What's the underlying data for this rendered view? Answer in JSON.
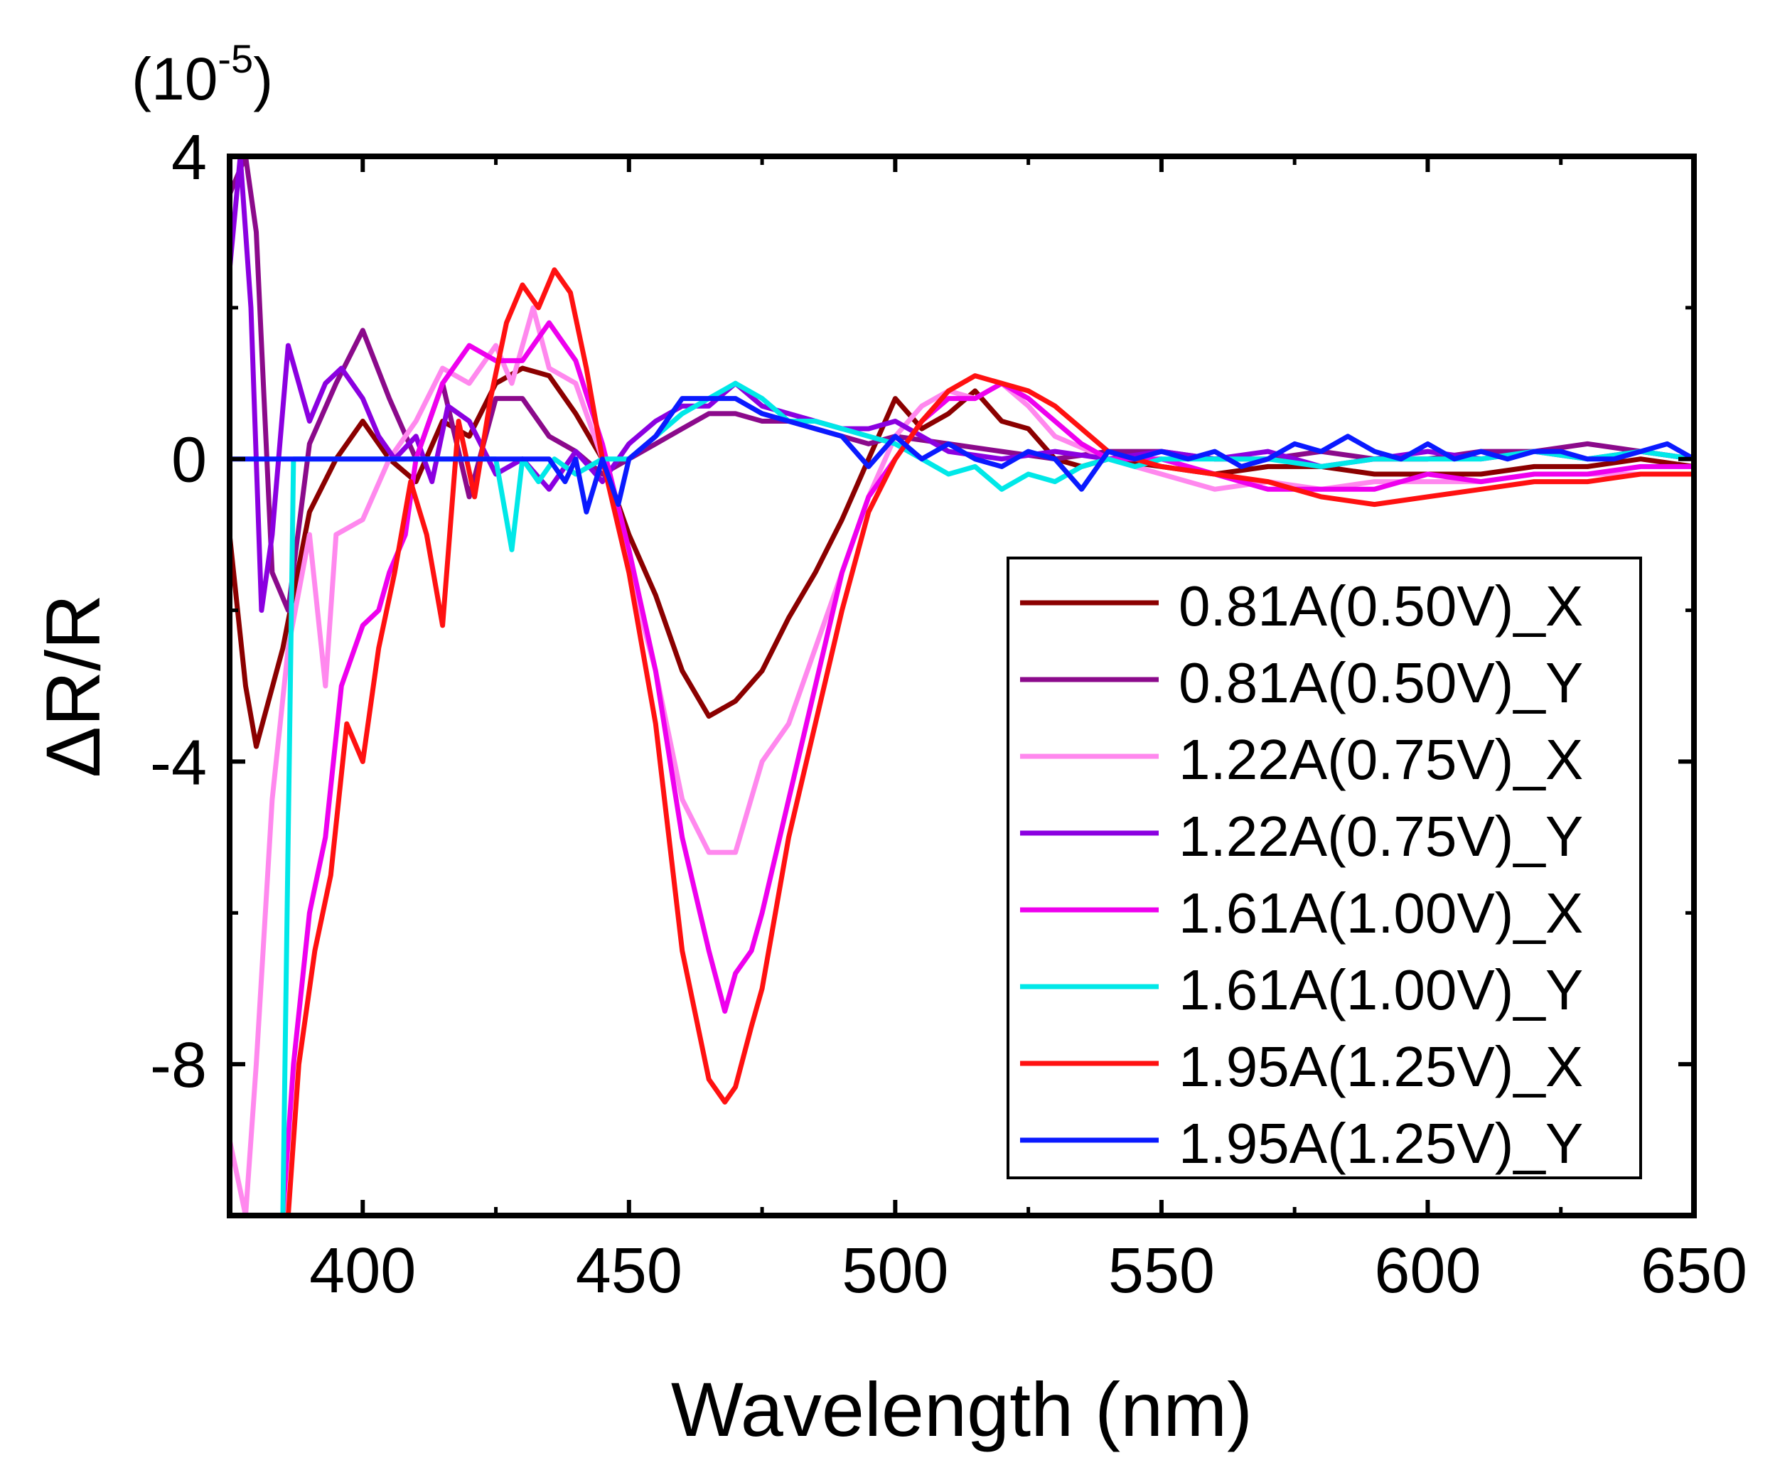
{
  "chart_data": {
    "type": "line",
    "title": "",
    "xlabel": "Wavelength (nm)",
    "ylabel": "ΔR/R",
    "y_multiplier": "(10",
    "y_multiplier_exp": "-5",
    "y_multiplier_close": ")",
    "xlim": [
      375,
      650
    ],
    "ylim": [
      -10,
      4
    ],
    "xticks": [
      400,
      450,
      500,
      550,
      600,
      650
    ],
    "yticks": [
      -8,
      -4,
      0,
      4
    ],
    "xtick_labels": [
      "400",
      "450",
      "500",
      "550",
      "600",
      "650"
    ],
    "ytick_labels": [
      "-8",
      "-4",
      "0",
      "4"
    ],
    "legend_position": "lower-right",
    "series": [
      {
        "name": "0.81A(0.50V)_X",
        "color": "#8b0000",
        "x": [
          375,
          378,
          380,
          385,
          390,
          395,
          400,
          405,
          410,
          415,
          420,
          425,
          430,
          435,
          440,
          445,
          450,
          455,
          460,
          465,
          470,
          475,
          480,
          485,
          490,
          495,
          500,
          505,
          510,
          515,
          520,
          525,
          530,
          535,
          540,
          550,
          560,
          570,
          580,
          590,
          600,
          610,
          620,
          630,
          640,
          650
        ],
        "y": [
          -1.0,
          -3.0,
          -3.8,
          -2.5,
          -0.7,
          0.0,
          0.5,
          0.0,
          -0.3,
          0.5,
          0.3,
          1.0,
          1.2,
          1.1,
          0.6,
          0.0,
          -1.0,
          -1.8,
          -2.8,
          -3.4,
          -3.2,
          -2.8,
          -2.1,
          -1.5,
          -0.8,
          0.0,
          0.8,
          0.4,
          0.6,
          0.9,
          0.5,
          0.4,
          0.0,
          -0.1,
          0.0,
          -0.1,
          -0.2,
          -0.1,
          -0.1,
          -0.2,
          -0.2,
          -0.2,
          -0.1,
          -0.1,
          0.0,
          -0.1
        ]
      },
      {
        "name": "0.81A(0.50V)_Y",
        "color": "#8b0a8b",
        "x": [
          375,
          378,
          380,
          383,
          386,
          390,
          395,
          400,
          405,
          410,
          415,
          420,
          425,
          430,
          435,
          440,
          445,
          450,
          455,
          460,
          465,
          470,
          475,
          480,
          485,
          490,
          495,
          500,
          510,
          520,
          530,
          540,
          550,
          560,
          570,
          580,
          590,
          600,
          610,
          620,
          630,
          640,
          650
        ],
        "y": [
          3.5,
          4.0,
          3.0,
          -1.5,
          -2.0,
          0.2,
          1.0,
          1.7,
          0.8,
          0.0,
          1.0,
          -0.5,
          0.8,
          0.8,
          0.3,
          0.1,
          -0.2,
          0.0,
          0.2,
          0.4,
          0.6,
          0.6,
          0.5,
          0.5,
          0.4,
          0.3,
          0.2,
          0.3,
          0.2,
          0.1,
          0.0,
          0.1,
          0.1,
          0.0,
          0.0,
          0.1,
          0.0,
          0.0,
          0.1,
          0.1,
          0.2,
          0.1,
          0.0
        ]
      },
      {
        "name": "1.22A(0.75V)_X",
        "color": "#ff88ee",
        "x": [
          375,
          378,
          380,
          383,
          386,
          390,
          393,
          395,
          400,
          405,
          410,
          415,
          420,
          425,
          428,
          432,
          435,
          440,
          445,
          450,
          455,
          460,
          465,
          470,
          475,
          480,
          485,
          490,
          495,
          500,
          505,
          510,
          515,
          520,
          525,
          530,
          540,
          550,
          560,
          570,
          580,
          590,
          600,
          610,
          620,
          630,
          640,
          650
        ],
        "y": [
          -9.0,
          -10.0,
          -8.0,
          -4.5,
          -2.5,
          -1.0,
          -3.0,
          -1.0,
          -0.8,
          0.0,
          0.5,
          1.2,
          1.0,
          1.5,
          1.0,
          2.0,
          1.2,
          1.0,
          0.0,
          -1.5,
          -2.8,
          -4.5,
          -5.2,
          -5.2,
          -4.0,
          -3.5,
          -2.5,
          -1.5,
          -0.5,
          0.3,
          0.7,
          0.9,
          0.8,
          1.0,
          0.7,
          0.3,
          0.0,
          -0.2,
          -0.4,
          -0.3,
          -0.4,
          -0.3,
          -0.3,
          -0.3,
          -0.2,
          -0.2,
          -0.2,
          -0.2
        ]
      },
      {
        "name": "1.22A(0.75V)_Y",
        "color": "#8b00e0",
        "x": [
          375,
          377,
          379,
          381,
          383,
          386,
          390,
          393,
          396,
          400,
          403,
          406,
          410,
          413,
          416,
          420,
          425,
          430,
          435,
          440,
          445,
          450,
          455,
          460,
          465,
          470,
          475,
          480,
          485,
          490,
          495,
          500,
          505,
          510,
          520,
          530,
          540,
          550,
          560,
          570,
          580,
          590,
          600,
          610,
          620,
          630,
          640,
          650
        ],
        "y": [
          2.5,
          4.0,
          2.0,
          -2.0,
          -1.0,
          1.5,
          0.5,
          1.0,
          1.2,
          0.8,
          0.3,
          0.0,
          0.3,
          -0.3,
          0.7,
          0.5,
          -0.2,
          0.0,
          -0.4,
          0.1,
          -0.3,
          0.2,
          0.5,
          0.7,
          0.7,
          1.0,
          0.7,
          0.6,
          0.5,
          0.4,
          0.4,
          0.5,
          0.3,
          0.1,
          0.0,
          0.1,
          0.0,
          0.1,
          0.0,
          0.1,
          -0.1,
          0.0,
          0.1,
          0.0,
          0.1,
          0.0,
          0.1,
          0.0
        ]
      },
      {
        "name": "1.61A(1.00V)_X",
        "color": "#ee00ee",
        "x": [
          377,
          379,
          381,
          383,
          385,
          387,
          390,
          393,
          396,
          400,
          403,
          405,
          408,
          410,
          415,
          420,
          425,
          430,
          435,
          440,
          445,
          450,
          455,
          460,
          465,
          468,
          470,
          473,
          475,
          480,
          485,
          490,
          495,
          500,
          505,
          510,
          515,
          520,
          525,
          530,
          535,
          540,
          550,
          560,
          570,
          580,
          590,
          600,
          610,
          620,
          630,
          640,
          650
        ],
        "y": [
          -10.0,
          -10.0,
          -10.0,
          -10.0,
          -10.0,
          -8.0,
          -6.0,
          -5.0,
          -3.0,
          -2.2,
          -2.0,
          -1.5,
          -1.0,
          0.0,
          1.0,
          1.5,
          1.3,
          1.3,
          1.8,
          1.3,
          0.2,
          -1.2,
          -2.8,
          -5.0,
          -6.5,
          -7.3,
          -6.8,
          -6.5,
          -6.0,
          -4.5,
          -3.0,
          -1.5,
          -0.5,
          0.0,
          0.5,
          0.8,
          0.8,
          1.0,
          0.8,
          0.5,
          0.2,
          0.0,
          0.0,
          -0.2,
          -0.4,
          -0.4,
          -0.4,
          -0.2,
          -0.3,
          -0.2,
          -0.2,
          -0.1,
          -0.1
        ]
      },
      {
        "name": "1.61A(1.00V)_Y",
        "color": "#00e8e8",
        "x": [
          375,
          377,
          379,
          381,
          383,
          385,
          387,
          390,
          395,
          400,
          410,
          420,
          425,
          428,
          430,
          433,
          436,
          440,
          445,
          450,
          455,
          460,
          465,
          470,
          475,
          480,
          485,
          490,
          495,
          500,
          505,
          510,
          515,
          520,
          525,
          530,
          535,
          540,
          545,
          550,
          560,
          570,
          580,
          590,
          600,
          610,
          620,
          630,
          640,
          650
        ],
        "y": [
          -10.0,
          -10.0,
          -10.0,
          -10.0,
          -10.0,
          -10.0,
          0.0,
          0.0,
          0.0,
          0.0,
          0.0,
          0.0,
          0.0,
          -1.2,
          0.0,
          -0.3,
          0.0,
          -0.2,
          0.0,
          0.0,
          0.3,
          0.6,
          0.8,
          1.0,
          0.8,
          0.5,
          0.5,
          0.4,
          0.3,
          0.2,
          0.0,
          -0.2,
          -0.1,
          -0.4,
          -0.2,
          -0.3,
          -0.1,
          0.0,
          -0.1,
          0.0,
          0.0,
          0.0,
          -0.1,
          0.0,
          0.0,
          0.0,
          0.1,
          0.0,
          0.1,
          0.0
        ]
      },
      {
        "name": "1.95A(1.25V)_X",
        "color": "#ff1111",
        "x": [
          375,
          378,
          381,
          384,
          386,
          388,
          391,
          394,
          397,
          400,
          403,
          406,
          409,
          412,
          415,
          418,
          421,
          424,
          427,
          430,
          433,
          436,
          439,
          442,
          445,
          450,
          455,
          460,
          465,
          468,
          470,
          473,
          475,
          480,
          485,
          490,
          495,
          500,
          505,
          510,
          515,
          520,
          525,
          530,
          535,
          540,
          550,
          560,
          570,
          580,
          590,
          600,
          610,
          620,
          630,
          640,
          650
        ],
        "y": [
          -10.0,
          -10.0,
          -10.0,
          -10.0,
          -10.0,
          -8.0,
          -6.5,
          -5.5,
          -3.5,
          -4.0,
          -2.5,
          -1.5,
          -0.3,
          -1.0,
          -2.2,
          0.5,
          -0.5,
          0.8,
          1.8,
          2.3,
          2.0,
          2.5,
          2.2,
          1.2,
          0.0,
          -1.5,
          -3.5,
          -6.5,
          -8.2,
          -8.5,
          -8.3,
          -7.5,
          -7.0,
          -5.0,
          -3.5,
          -2.0,
          -0.7,
          0.0,
          0.5,
          0.9,
          1.1,
          1.0,
          0.9,
          0.7,
          0.4,
          0.1,
          -0.1,
          -0.2,
          -0.3,
          -0.5,
          -0.6,
          -0.5,
          -0.4,
          -0.3,
          -0.3,
          -0.2,
          -0.2
        ]
      },
      {
        "name": "1.95A(1.25V)_Y",
        "color": "#0a1aff",
        "x": [
          375,
          400,
          420,
          435,
          438,
          440,
          442,
          445,
          448,
          450,
          455,
          460,
          465,
          470,
          475,
          480,
          485,
          490,
          495,
          500,
          505,
          510,
          515,
          520,
          525,
          530,
          535,
          540,
          545,
          550,
          555,
          560,
          565,
          570,
          575,
          580,
          585,
          590,
          595,
          600,
          605,
          610,
          615,
          620,
          625,
          630,
          635,
          640,
          645,
          650
        ],
        "y": [
          0.0,
          0.0,
          0.0,
          0.0,
          -0.3,
          0.0,
          -0.7,
          0.0,
          -0.6,
          0.0,
          0.3,
          0.8,
          0.8,
          0.8,
          0.6,
          0.5,
          0.4,
          0.3,
          -0.1,
          0.3,
          0.0,
          0.2,
          0.0,
          -0.1,
          0.1,
          0.0,
          -0.4,
          0.1,
          0.0,
          0.1,
          0.0,
          0.1,
          -0.1,
          0.0,
          0.2,
          0.1,
          0.3,
          0.1,
          0.0,
          0.2,
          0.0,
          0.1,
          0.0,
          0.1,
          0.1,
          0.0,
          0.0,
          0.1,
          0.2,
          0.0
        ]
      }
    ]
  }
}
